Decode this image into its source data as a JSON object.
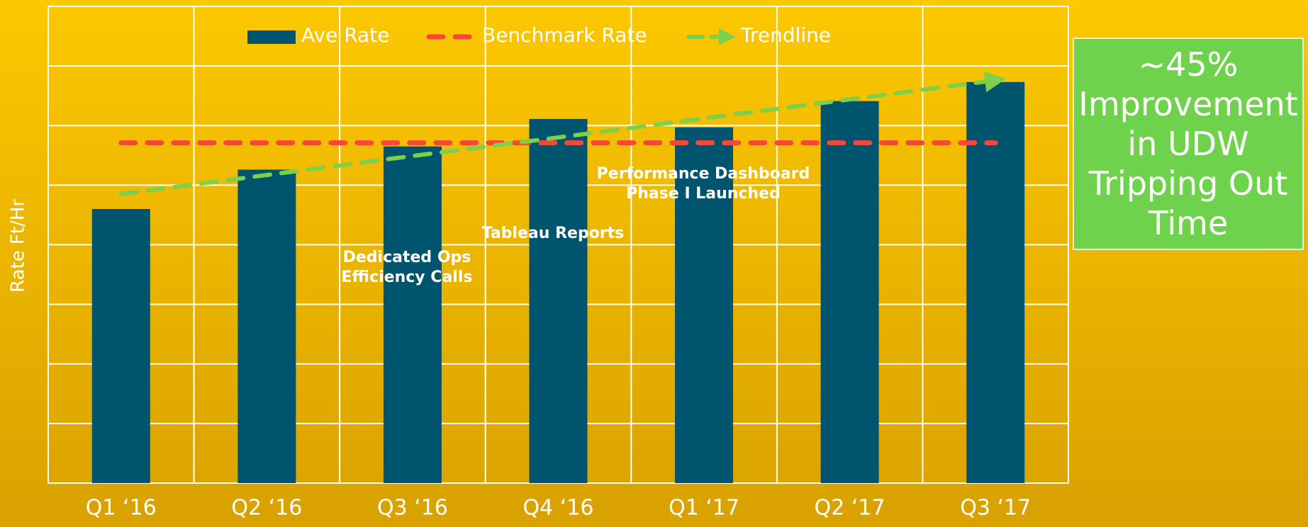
{
  "chart_data": {
    "type": "bar",
    "y_label": "Rate Ft/Hr",
    "categories": [
      "Q1 ‘16",
      "Q2 ‘16",
      "Q3 ‘16",
      "Q4 ‘16",
      "Q1 ‘17",
      "Q2 ‘17",
      "Q3 ‘17"
    ],
    "series": [
      {
        "name": "Ave Rate",
        "color": "#00546e",
        "values": [
          4.6,
          5.26,
          5.65,
          6.11,
          5.97,
          6.41,
          6.73
        ]
      },
      {
        "name": "Benchmark Rate",
        "color": "#f5473a",
        "values": [
          5.71,
          5.71,
          5.71,
          5.71,
          5.71,
          5.71,
          5.71
        ]
      },
      {
        "name": "Trendline",
        "color": "#7ed04a",
        "values": [
          4.85,
          5.17,
          5.49,
          5.8,
          6.12,
          6.44,
          6.76
        ]
      }
    ],
    "ylim": [
      0,
      8
    ],
    "yticks": [
      0,
      1,
      2,
      3,
      4,
      5,
      6,
      7,
      8
    ],
    "grid": true,
    "annotations": [
      {
        "lines": [
          "Dedicated Ops",
          "Efficiency Calls"
        ]
      },
      {
        "lines": [
          "Tableau Reports"
        ]
      },
      {
        "lines": [
          "Performance Dashboard",
          "Phase I Launched"
        ]
      }
    ],
    "callout": [
      "~45%",
      "Improvement",
      "in UDW",
      "Tripping Out",
      "Time"
    ]
  }
}
